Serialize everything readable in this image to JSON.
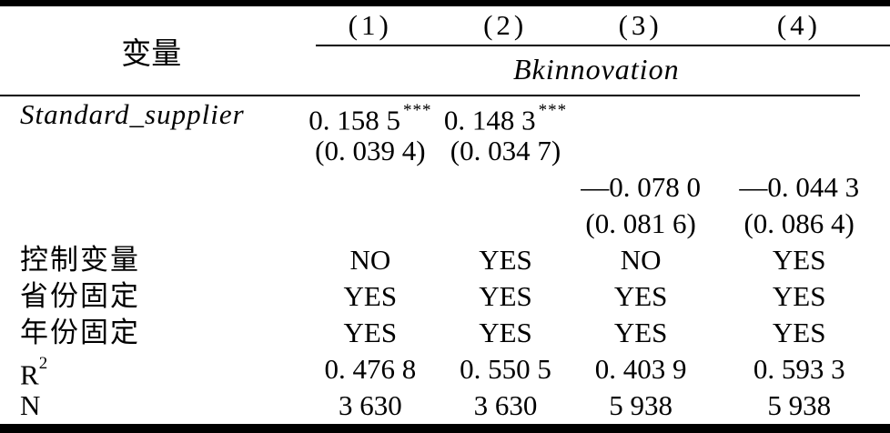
{
  "table": {
    "header": {
      "row_label": "变量",
      "col1": "(1)",
      "col2": "(2)",
      "col3": "(3)",
      "col4": "(4)",
      "dep_var": "Bkinnovation"
    },
    "rows": {
      "coef1": {
        "label": "Standard_supplier",
        "c1": "0. 158 5",
        "c1_stars": "***",
        "c2": "0. 148 3",
        "c2_stars": "***",
        "c3": "",
        "c4": ""
      },
      "se1": {
        "label": "",
        "c1": "(0. 039 4)",
        "c2": "(0. 034 7)",
        "c3": "",
        "c4": ""
      },
      "coef2": {
        "label": "",
        "c1": "",
        "c2": "",
        "c3": "—0. 078 0",
        "c4": "—0. 044 3"
      },
      "se2": {
        "label": "",
        "c1": "",
        "c2": "",
        "c3": "(0. 081 6)",
        "c4": "(0. 086 4)"
      },
      "controls": {
        "label": "控制变量",
        "c1": "NO",
        "c2": "YES",
        "c3": "NO",
        "c4": "YES"
      },
      "province_fe": {
        "label": "省份固定",
        "c1": "YES",
        "c2": "YES",
        "c3": "YES",
        "c4": "YES"
      },
      "year_fe": {
        "label": "年份固定",
        "c1": "YES",
        "c2": "YES",
        "c3": "YES",
        "c4": "YES"
      },
      "r2": {
        "label_base": "R",
        "label_sup": "2",
        "c1": "0. 476 8",
        "c2": "0. 550 5",
        "c3": "0. 403 9",
        "c4": "0. 593 3"
      },
      "n": {
        "label": "N",
        "c1": "3 630",
        "c2": "3 630",
        "c3": "5 938",
        "c4": "5 938"
      }
    }
  }
}
